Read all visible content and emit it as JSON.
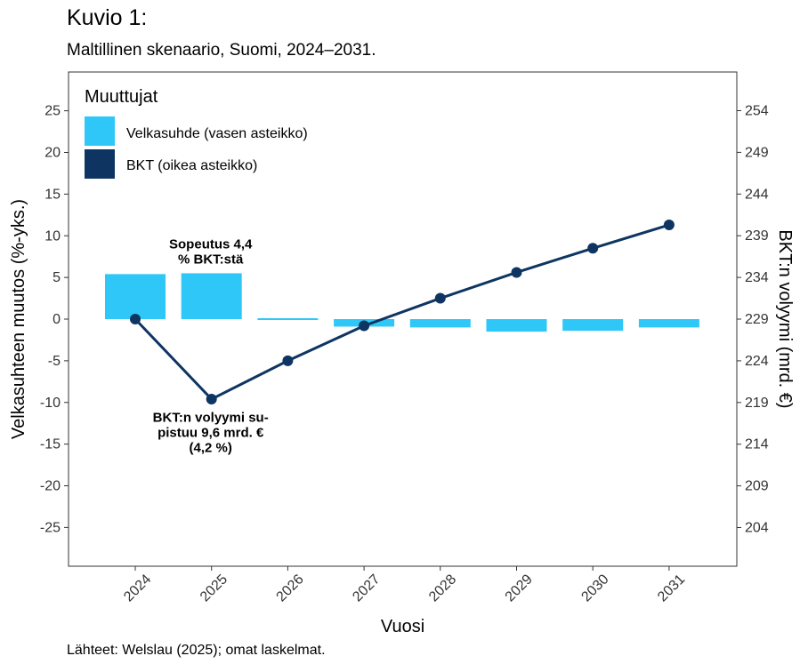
{
  "header": {
    "title": "Kuvio 1:",
    "subtitle": "Maltillinen skenaario, Suomi, 2024–2031."
  },
  "caption": "Lähteet: Welslau (2025); omat laskelmat.",
  "colors": {
    "bar": "#2ec7f7",
    "line": "#0e3562",
    "grid": "none",
    "frame": "#333333"
  },
  "chart_data": {
    "type": "bar+line",
    "grid": false,
    "categories": [
      "2024",
      "2025",
      "2026",
      "2027",
      "2028",
      "2029",
      "2030",
      "2031"
    ],
    "xlabel": "Vuosi",
    "ylabel_left": "Velkasuhteen muutos (%-yks.)",
    "ylabel_right": "BKT:n volyymi (mrd. €)",
    "ylim_left": [
      -30,
      30
    ],
    "ylim_right": [
      201,
      258
    ],
    "yticks_left": [
      "25",
      "20",
      "15",
      "10",
      "5",
      "0",
      "-5",
      "-10",
      "-15",
      "-20",
      "-25"
    ],
    "yticks_left_values": [
      25,
      20,
      15,
      10,
      5,
      0,
      -5,
      -10,
      -15,
      -20,
      -25
    ],
    "yticks_right": [
      "254",
      "249",
      "244",
      "239",
      "234",
      "229",
      "224",
      "219",
      "214",
      "209",
      "204"
    ],
    "yticks_right_values": [
      254,
      249,
      244,
      239,
      234,
      229,
      224,
      219,
      214,
      209,
      204
    ],
    "legend": {
      "title": "Muuttujat",
      "position": "top-left",
      "items": [
        "Velkasuhde (vasen asteikko)",
        "BKT (oikea asteikko)"
      ]
    },
    "series": [
      {
        "name": "Velkasuhde (vasen asteikko)",
        "type": "bar",
        "axis": "left",
        "values": [
          5.4,
          5.5,
          -0.2,
          -0.9,
          -1.0,
          -1.5,
          -1.4,
          -1.0
        ]
      },
      {
        "name": "BKT (oikea asteikko)",
        "type": "line",
        "axis": "right",
        "values": [
          229.0,
          219.4,
          224.0,
          228.2,
          231.5,
          234.6,
          237.5,
          240.3
        ]
      }
    ],
    "annotations": [
      {
        "lines": [
          "Sopeutus 4,4",
          "% BKT:stä"
        ],
        "x": "2025",
        "y_left": 8.5
      },
      {
        "lines": [
          "BKT:n volyymi su-",
          "pistuu 9,6 mrd. €",
          "(4,2 %)"
        ],
        "x": "2025",
        "y_left": -12.3
      }
    ]
  }
}
